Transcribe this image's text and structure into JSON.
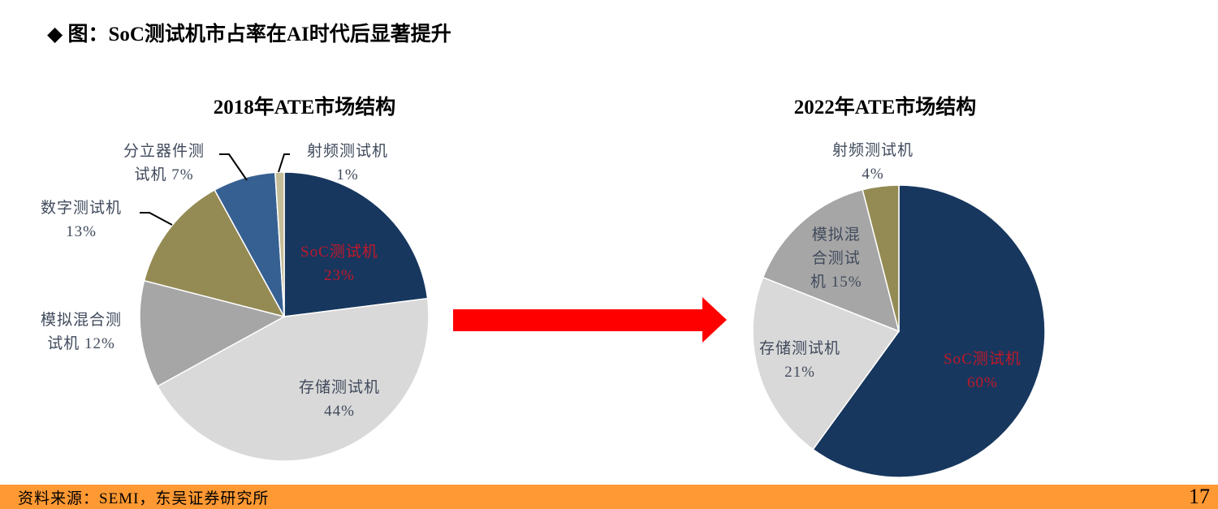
{
  "title": "◆ 图：SoC测试机市占率在AI时代后显著提升",
  "footer": {
    "source": "资料来源：SEMI，东吴证券研究所",
    "page": "17"
  },
  "colors": {
    "soc": "#17375e",
    "storage": "#d9d9d9",
    "analog": "#a6a6a6",
    "digital": "#948a54",
    "discrete": "#376092",
    "rf2018": "#c4bd97",
    "rf2022": "#948a54",
    "arrow": "#ff0000",
    "footer": "#ff9933"
  },
  "chart_data": [
    {
      "type": "pie",
      "title": "2018年ATE市场结构",
      "slices": [
        {
          "label": "SoC测试机",
          "value": 23,
          "pct": "23%"
        },
        {
          "label": "存储测试机",
          "value": 44,
          "pct": "44%"
        },
        {
          "label": "模拟混合测试机",
          "value": 12,
          "pct": "12%"
        },
        {
          "label": "数字测试机",
          "value": 13,
          "pct": "13%"
        },
        {
          "label": "分立器件测试机",
          "value": 7,
          "pct": "7%"
        },
        {
          "label": "射频测试机",
          "value": 1,
          "pct": "1%"
        }
      ]
    },
    {
      "type": "pie",
      "title": "2022年ATE市场结构",
      "slices": [
        {
          "label": "SoC测试机",
          "value": 60,
          "pct": "60%"
        },
        {
          "label": "存储测试机",
          "value": 21,
          "pct": "21%"
        },
        {
          "label": "模拟混合测试机",
          "value": 15,
          "pct": "15%"
        },
        {
          "label": "射频测试机",
          "value": 4,
          "pct": "4%"
        }
      ]
    }
  ],
  "labels": {
    "c1": {
      "soc1": "SoC测试机",
      "soc2": "23%",
      "sto1": "存储测试机",
      "sto2": "44%",
      "ana1": "模拟混合测",
      "ana2": "试机 12%",
      "dig1": "数字测试机",
      "dig2": "13%",
      "dis1": "分立器件测",
      "dis2": "试机 7%",
      "rf1": "射频测试机",
      "rf2": "1%"
    },
    "c2": {
      "soc1": "SoC测试机",
      "soc2": "60%",
      "sto1": "存储测试机",
      "sto2": "21%",
      "ana1": "模拟混",
      "ana2": "合测试",
      "ana3": "机 15%",
      "rf1": "射频测试机",
      "rf2": "4%"
    }
  }
}
